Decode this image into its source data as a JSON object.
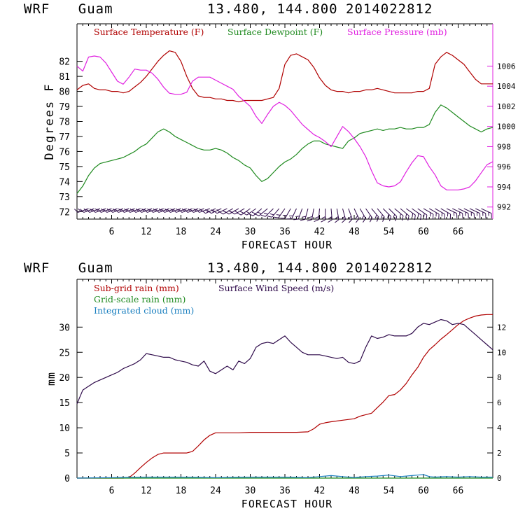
{
  "panel1": {
    "model": "WRF",
    "location": "Guam",
    "coords": "13.480, 144.800",
    "run": "2014022812"
  },
  "panel2": {
    "model": "WRF",
    "location": "Guam",
    "coords": "13.480, 144.800",
    "run": "2014022812"
  },
  "colors": {
    "temperature": "#b00000",
    "dewpoint": "#1f8a1f",
    "pressure": "#e020e0",
    "subgrid_rain": "#b00000",
    "gridscale_rain": "#1f8a1f",
    "cloud": "#1a7fbf",
    "wind_speed": "#2e0a4a",
    "wind_barbs": "#2e0a4a"
  },
  "chart_data": [
    {
      "type": "line",
      "xlabel": "FORECAST HOUR",
      "ylabel": "Degrees F",
      "xlim": [
        0,
        72
      ],
      "xticks": [
        6,
        12,
        18,
        24,
        30,
        36,
        42,
        48,
        54,
        60,
        66
      ],
      "ylim": [
        71.5,
        84.5
      ],
      "yticks": [
        72,
        73,
        74,
        75,
        76,
        77,
        78,
        79,
        80,
        81,
        82
      ],
      "y2lim": [
        990.8,
        1010.2
      ],
      "y2ticks": [
        992,
        994,
        996,
        998,
        1000,
        1002,
        1004,
        1006
      ],
      "legend": [
        "Surface Temperature (F)",
        "Surface Dewpoint (F)",
        "Surface Pressure (mb)"
      ],
      "series": [
        {
          "name": "Surface Temperature (F)",
          "axis": "left",
          "x": [
            0,
            1,
            2,
            3,
            4,
            5,
            6,
            7,
            8,
            9,
            10,
            11,
            12,
            13,
            14,
            15,
            16,
            17,
            18,
            19,
            20,
            21,
            22,
            23,
            24,
            25,
            26,
            27,
            28,
            29,
            30,
            31,
            32,
            33,
            34,
            35,
            36,
            37,
            38,
            39,
            40,
            41,
            42,
            43,
            44,
            45,
            46,
            47,
            48,
            49,
            50,
            51,
            52,
            53,
            54,
            55,
            56,
            57,
            58,
            59,
            60,
            61,
            62,
            63,
            64,
            65,
            66,
            67,
            68,
            69,
            70,
            71,
            72
          ],
          "values": [
            80.1,
            80.4,
            80.5,
            80.2,
            80.1,
            80.1,
            80.0,
            80.0,
            79.9,
            80.0,
            80.3,
            80.6,
            81.0,
            81.5,
            82.0,
            82.4,
            82.7,
            82.6,
            82.0,
            81.0,
            80.2,
            79.7,
            79.6,
            79.6,
            79.5,
            79.5,
            79.4,
            79.4,
            79.3,
            79.4,
            79.4,
            79.4,
            79.4,
            79.5,
            79.6,
            80.2,
            81.8,
            82.4,
            82.5,
            82.3,
            82.1,
            81.6,
            80.9,
            80.4,
            80.1,
            80.0,
            80.0,
            79.9,
            80.0,
            80.0,
            80.1,
            80.1,
            80.2,
            80.1,
            80.0,
            79.9,
            79.9,
            79.9,
            79.9,
            80.0,
            80.0,
            80.2,
            81.8,
            82.3,
            82.6,
            82.4,
            82.1,
            81.8,
            81.3,
            80.8,
            80.5,
            80.5,
            80.5
          ]
        },
        {
          "name": "Surface Dewpoint (F)",
          "axis": "left",
          "x": [
            0,
            1,
            2,
            3,
            4,
            5,
            6,
            7,
            8,
            9,
            10,
            11,
            12,
            13,
            14,
            15,
            16,
            17,
            18,
            19,
            20,
            21,
            22,
            23,
            24,
            25,
            26,
            27,
            28,
            29,
            30,
            31,
            32,
            33,
            34,
            35,
            36,
            37,
            38,
            39,
            40,
            41,
            42,
            43,
            44,
            45,
            46,
            47,
            48,
            49,
            50,
            51,
            52,
            53,
            54,
            55,
            56,
            57,
            58,
            59,
            60,
            61,
            62,
            63,
            64,
            65,
            66,
            67,
            68,
            69,
            70,
            71,
            72
          ],
          "values": [
            73.2,
            73.7,
            74.4,
            74.9,
            75.2,
            75.3,
            75.4,
            75.5,
            75.6,
            75.8,
            76.0,
            76.3,
            76.5,
            76.9,
            77.3,
            77.5,
            77.3,
            77.0,
            76.8,
            76.6,
            76.4,
            76.2,
            76.1,
            76.1,
            76.2,
            76.1,
            75.9,
            75.6,
            75.4,
            75.1,
            74.9,
            74.4,
            74.0,
            74.2,
            74.6,
            75.0,
            75.3,
            75.5,
            75.8,
            76.2,
            76.5,
            76.7,
            76.7,
            76.5,
            76.4,
            76.3,
            76.2,
            76.7,
            76.9,
            77.2,
            77.3,
            77.4,
            77.5,
            77.4,
            77.5,
            77.5,
            77.6,
            77.5,
            77.5,
            77.6,
            77.6,
            77.8,
            78.6,
            79.1,
            78.9,
            78.6,
            78.3,
            78.0,
            77.7,
            77.5,
            77.3,
            77.5,
            77.6
          ]
        },
        {
          "name": "Surface Pressure (mb)",
          "axis": "right",
          "x": [
            0,
            1,
            2,
            3,
            4,
            5,
            6,
            7,
            8,
            9,
            10,
            11,
            12,
            13,
            14,
            15,
            16,
            17,
            18,
            19,
            20,
            21,
            22,
            23,
            24,
            25,
            26,
            27,
            28,
            29,
            30,
            31,
            32,
            33,
            34,
            35,
            36,
            37,
            38,
            39,
            40,
            41,
            42,
            43,
            44,
            45,
            46,
            47,
            48,
            49,
            50,
            51,
            52,
            53,
            54,
            55,
            56,
            57,
            58,
            59,
            60,
            61,
            62,
            63,
            64,
            65,
            66,
            67,
            68,
            69,
            70,
            71,
            72
          ],
          "values": [
            1006.0,
            1005.5,
            1006.9,
            1007.0,
            1006.9,
            1006.3,
            1005.4,
            1004.5,
            1004.2,
            1004.9,
            1005.7,
            1005.6,
            1005.6,
            1005.3,
            1004.7,
            1003.9,
            1003.3,
            1003.2,
            1003.2,
            1003.4,
            1004.5,
            1004.9,
            1004.9,
            1004.9,
            1004.6,
            1004.3,
            1004.0,
            1003.7,
            1003.0,
            1002.5,
            1002.0,
            1001.0,
            1000.3,
            1001.2,
            1002.0,
            1002.4,
            1002.1,
            1001.6,
            1000.9,
            1000.2,
            999.7,
            999.2,
            998.9,
            998.5,
            998.0,
            999.0,
            1000.0,
            999.5,
            998.8,
            998.0,
            997.0,
            995.6,
            994.4,
            994.1,
            994.0,
            994.1,
            994.5,
            995.5,
            996.4,
            997.1,
            997.0,
            996.0,
            995.2,
            994.1,
            993.7,
            993.7,
            993.7,
            993.8,
            994.0,
            994.6,
            995.4,
            996.2,
            996.5
          ]
        }
      ],
      "wind_barbs": {
        "series": "Surface wind",
        "x": [
          2,
          3,
          4,
          5,
          6,
          7,
          8,
          9,
          10,
          11,
          12,
          13,
          14,
          15,
          16,
          17,
          18,
          19,
          20,
          21,
          22,
          23,
          24,
          25,
          26,
          27,
          28,
          29,
          30,
          31,
          32,
          33,
          34,
          35,
          36,
          37,
          38,
          39,
          40,
          41,
          42,
          43,
          44,
          45,
          46,
          47,
          48,
          49,
          50,
          51,
          52,
          53,
          54,
          55,
          56,
          57,
          58,
          59,
          60,
          61,
          62,
          63,
          64,
          65,
          66,
          67,
          68,
          69,
          70
        ],
        "direction_deg": [
          250,
          250,
          250,
          250,
          250,
          250,
          250,
          250,
          250,
          250,
          250,
          250,
          250,
          250,
          250,
          250,
          250,
          250,
          250,
          250,
          250,
          250,
          245,
          245,
          245,
          240,
          240,
          240,
          235,
          235,
          230,
          230,
          225,
          220,
          215,
          210,
          205,
          200,
          195,
          190,
          185,
          180,
          175,
          170,
          165,
          160,
          155,
          150,
          145,
          140,
          140,
          135,
          135,
          130,
          130,
          125,
          125,
          125,
          120,
          120,
          120,
          120,
          115,
          115,
          115,
          115,
          115,
          115,
          115
        ]
      }
    },
    {
      "type": "line",
      "xlabel": "FORECAST HOUR",
      "ylabel": "mm",
      "xlim": [
        0,
        72
      ],
      "xticks": [
        6,
        12,
        18,
        24,
        30,
        36,
        42,
        48,
        54,
        60,
        66
      ],
      "ylim": [
        0,
        39.5
      ],
      "yticks": [
        0,
        5,
        10,
        15,
        20,
        25,
        30
      ],
      "y2lim": [
        0,
        15.8
      ],
      "y2ticks": [
        0,
        2,
        4,
        6,
        8,
        10,
        12
      ],
      "legend": [
        "Sub-grid rain (mm)",
        "Grid-scale rain (mm)",
        "Integrated cloud (mm)",
        "Surface Wind Speed (m/s)"
      ],
      "series": [
        {
          "name": "Sub-grid rain (mm)",
          "axis": "left",
          "x": [
            0,
            2,
            4,
            6,
            8,
            9,
            10,
            11,
            12,
            13,
            14,
            15,
            16,
            17,
            18,
            19,
            20,
            21,
            22,
            23,
            24,
            26,
            28,
            30,
            32,
            34,
            36,
            38,
            40,
            41,
            42,
            43,
            44,
            46,
            48,
            49,
            50,
            51,
            52,
            53,
            54,
            55,
            56,
            57,
            58,
            59,
            60,
            61,
            62,
            63,
            64,
            65,
            66,
            67,
            68,
            69,
            70,
            71,
            72
          ],
          "values": [
            0,
            0,
            0,
            0,
            0,
            0.1,
            1.0,
            2.1,
            3.1,
            4.0,
            4.7,
            5.0,
            5.0,
            5.0,
            5.0,
            5.0,
            5.3,
            6.4,
            7.6,
            8.5,
            9.0,
            9.0,
            9.0,
            9.1,
            9.1,
            9.1,
            9.1,
            9.1,
            9.2,
            9.8,
            10.7,
            11.0,
            11.2,
            11.5,
            11.8,
            12.3,
            12.6,
            12.9,
            14.0,
            15.1,
            16.4,
            16.6,
            17.5,
            18.8,
            20.5,
            22.0,
            24.0,
            25.5,
            26.5,
            27.6,
            28.5,
            29.5,
            30.5,
            31.3,
            31.8,
            32.2,
            32.4,
            32.5,
            32.5
          ]
        },
        {
          "name": "Grid-scale rain (mm)",
          "axis": "left",
          "x": [
            0,
            12,
            24,
            36,
            48,
            60,
            72
          ],
          "values": [
            0,
            0,
            0,
            0,
            0,
            0,
            0
          ]
        },
        {
          "name": "Integrated cloud (mm)",
          "axis": "left",
          "x": [
            0,
            6,
            12,
            18,
            24,
            30,
            36,
            40,
            42,
            44,
            46,
            48,
            50,
            52,
            54,
            56,
            58,
            59,
            60,
            61,
            62,
            64,
            66,
            68,
            70,
            72
          ],
          "values": [
            0,
            0.1,
            0.2,
            0.2,
            0.1,
            0.2,
            0.2,
            0.1,
            0.3,
            0.5,
            0.3,
            0.1,
            0.3,
            0.4,
            0.6,
            0.3,
            0.5,
            0.6,
            0.7,
            0.3,
            0.2,
            0.3,
            0.2,
            0.3,
            0.2,
            0.2
          ]
        },
        {
          "name": "Surface Wind Speed (m/s)",
          "axis": "right",
          "x": [
            0,
            1,
            2,
            3,
            4,
            5,
            6,
            7,
            8,
            9,
            10,
            11,
            12,
            13,
            14,
            15,
            16,
            17,
            18,
            19,
            20,
            21,
            22,
            23,
            24,
            25,
            26,
            27,
            28,
            29,
            30,
            31,
            32,
            33,
            34,
            35,
            36,
            37,
            38,
            39,
            40,
            41,
            42,
            43,
            44,
            45,
            46,
            47,
            48,
            49,
            50,
            51,
            52,
            53,
            54,
            55,
            56,
            57,
            58,
            59,
            60,
            61,
            62,
            63,
            64,
            65,
            66,
            67,
            68,
            69,
            70,
            71,
            72
          ],
          "values": [
            5.9,
            7.0,
            7.3,
            7.6,
            7.8,
            8.0,
            8.2,
            8.4,
            8.7,
            8.9,
            9.1,
            9.4,
            9.9,
            9.8,
            9.7,
            9.6,
            9.6,
            9.4,
            9.3,
            9.2,
            9.0,
            8.9,
            9.3,
            8.5,
            8.3,
            8.6,
            8.9,
            8.6,
            9.3,
            9.1,
            9.5,
            10.4,
            10.7,
            10.8,
            10.7,
            11.0,
            11.3,
            10.8,
            10.4,
            10.0,
            9.8,
            9.8,
            9.8,
            9.7,
            9.6,
            9.5,
            9.6,
            9.2,
            9.1,
            9.3,
            10.4,
            11.3,
            11.1,
            11.2,
            11.4,
            11.3,
            11.3,
            11.3,
            11.5,
            12.0,
            12.3,
            12.2,
            12.4,
            12.6,
            12.5,
            12.2,
            12.3,
            12.2,
            11.8,
            11.4,
            11.0,
            10.6,
            10.2
          ]
        }
      ]
    }
  ]
}
